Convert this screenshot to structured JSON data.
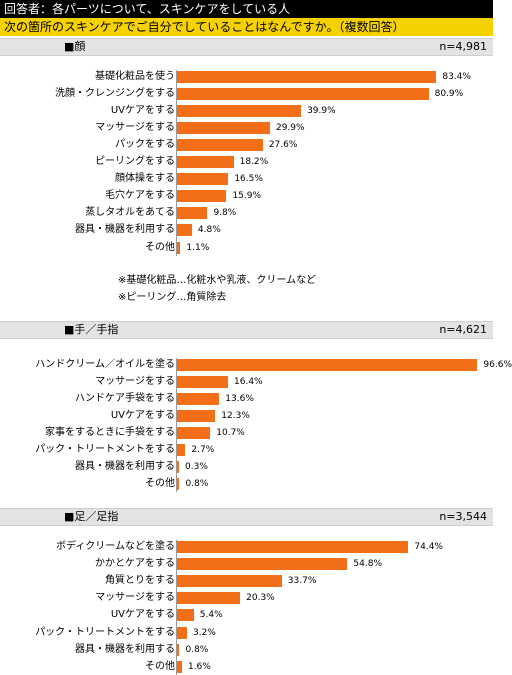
{
  "header": {
    "respondents": "回答者：各パーツについて、スキンケアをしている人",
    "question": "次の箇所のスキンケアでご自分でしていることはなんですか。（複数回答）"
  },
  "notes": [
    "※基礎化粧品…化粧水や乳液、クリームなど",
    "※ピーリング…角質除去"
  ],
  "chart_data": [
    {
      "type": "bar",
      "title": "■顔",
      "n": "n=4,981",
      "unit": "%",
      "categories": [
        "基礎化粧品を使う",
        "洗顔・クレンジングをする",
        "UVケアをする",
        "マッサージをする",
        "パックをする",
        "ピーリングをする",
        "顔体操をする",
        "毛穴ケアをする",
        "蒸しタオルをあてる",
        "器具・機器を利用する",
        "その他"
      ],
      "values": [
        83.4,
        80.9,
        39.9,
        29.9,
        27.6,
        18.2,
        16.5,
        15.9,
        9.8,
        4.8,
        1.1
      ],
      "labels": [
        "83.4%",
        "80.9%",
        "39.9%",
        "29.9%",
        "27.6%",
        "18.2%",
        "16.5%",
        "15.9%",
        "9.8%",
        "4.8%",
        "1.1%"
      ],
      "color": "#f36f17"
    },
    {
      "type": "bar",
      "title": "■手／手指",
      "n": "n=4,621",
      "unit": "%",
      "categories": [
        "ハンドクリーム／オイルを塗る",
        "マッサージをする",
        "ハンドケア手袋をする",
        "UVケアをする",
        "家事をするときに手袋をする",
        "パック・トリートメントをする",
        "器具・機器を利用する",
        "その他"
      ],
      "values": [
        96.6,
        16.4,
        13.6,
        12.3,
        10.7,
        2.7,
        0.3,
        0.8
      ],
      "labels": [
        "96.6%",
        "16.4%",
        "13.6%",
        "12.3%",
        "10.7%",
        "2.7%",
        "0.3%",
        "0.8%"
      ],
      "color": "#f36f17"
    },
    {
      "type": "bar",
      "title": "■足／足指",
      "n": "n=3,544",
      "unit": "%",
      "categories": [
        "ボディクリームなどを塗る",
        "かかとケアをする",
        "角質とりをする",
        "マッサージをする",
        "UVケアをする",
        "パック・トリートメントをする",
        "器具・機器を利用する",
        "その他"
      ],
      "values": [
        74.4,
        54.8,
        33.7,
        20.3,
        5.4,
        3.2,
        0.8,
        1.6
      ],
      "labels": [
        "74.4%",
        "54.8%",
        "33.7%",
        "20.3%",
        "5.4%",
        "3.2%",
        "0.8%",
        "1.6%"
      ],
      "color": "#f36f17"
    }
  ]
}
